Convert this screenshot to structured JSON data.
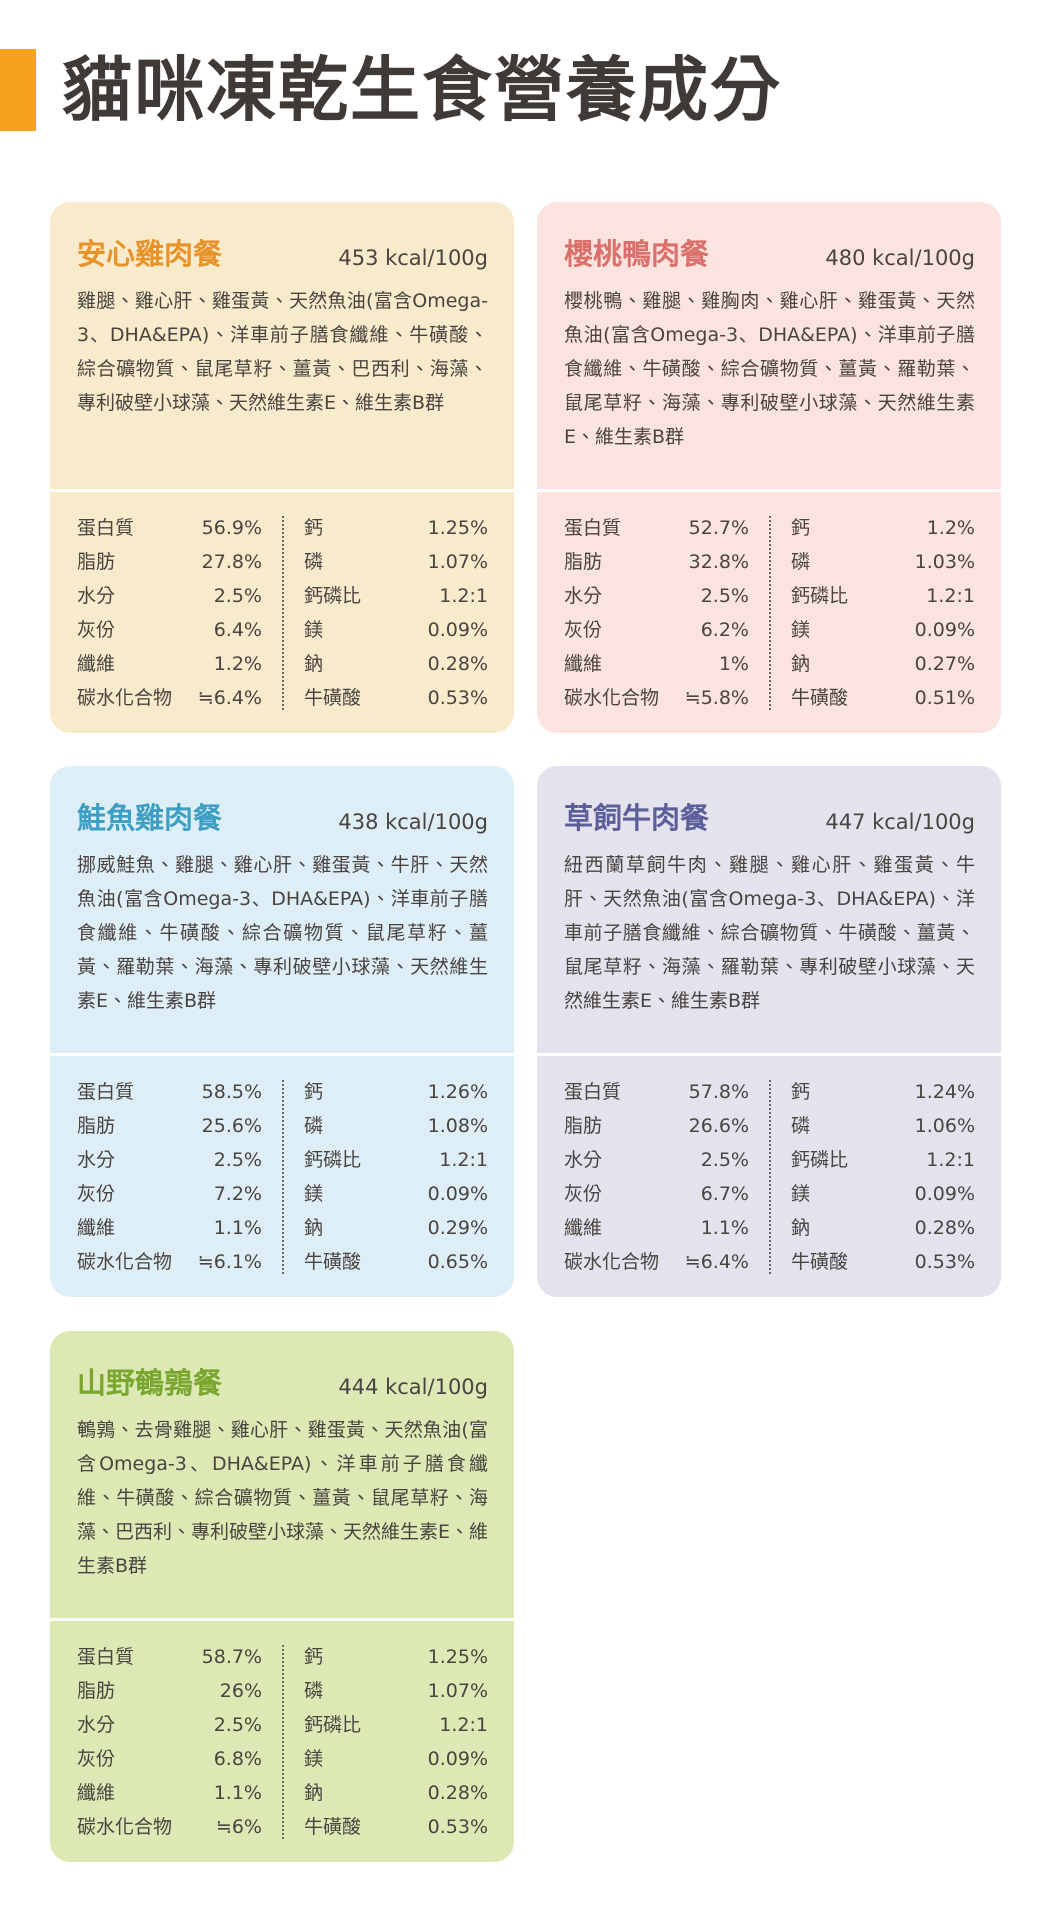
{
  "header": {
    "title": "貓咪凍乾生食營養成分"
  },
  "cards": [
    {
      "name": "安心雞肉餐",
      "kcal": "453 kcal/100g",
      "bg": "#f7ebcb",
      "accent": "#e8932a",
      "ingredients": "雞腿、雞心肝、雞蛋黃、天然魚油(富含Omega-3、DHA&EPA)、洋車前子膳食纖維、牛磺酸、綜合礦物質、鼠尾草籽、薑黃、巴西利、海藻、專利破壁小球藻、天然維生素E、維生素B群",
      "left": [
        [
          "蛋白質",
          "56.9%"
        ],
        [
          "脂肪",
          "27.8%"
        ],
        [
          "水分",
          "2.5%"
        ],
        [
          "灰份",
          "6.4%"
        ],
        [
          "纖維",
          "1.2%"
        ],
        [
          "碳水化合物",
          "≒6.4%"
        ]
      ],
      "right": [
        [
          "鈣",
          "1.25%"
        ],
        [
          "磷",
          "1.07%"
        ],
        [
          "鈣磷比",
          "1.2:1"
        ],
        [
          "鎂",
          "0.09%"
        ],
        [
          "鈉",
          "0.28%"
        ],
        [
          "牛磺酸",
          "0.53%"
        ]
      ]
    },
    {
      "name": "櫻桃鴨肉餐",
      "kcal": "480 kcal/100g",
      "bg": "#fbe3df",
      "accent": "#d9706b",
      "ingredients": "櫻桃鴨、雞腿、雞胸肉、雞心肝、雞蛋黃、天然魚油(富含Omega-3、DHA&EPA)、洋車前子膳食纖維、牛磺酸、綜合礦物質、薑黃、羅勒葉、鼠尾草籽、海藻、專利破壁小球藻、天然維生素E、維生素B群",
      "left": [
        [
          "蛋白質",
          "52.7%"
        ],
        [
          "脂肪",
          "32.8%"
        ],
        [
          "水分",
          "2.5%"
        ],
        [
          "灰份",
          "6.2%"
        ],
        [
          "纖維",
          "1%"
        ],
        [
          "碳水化合物",
          "≒5.8%"
        ]
      ],
      "right": [
        [
          "鈣",
          "1.2%"
        ],
        [
          "磷",
          "1.03%"
        ],
        [
          "鈣磷比",
          "1.2:1"
        ],
        [
          "鎂",
          "0.09%"
        ],
        [
          "鈉",
          "0.27%"
        ],
        [
          "牛磺酸",
          "0.51%"
        ]
      ]
    },
    {
      "name": "鮭魚雞肉餐",
      "kcal": "438 kcal/100g",
      "bg": "#ddeef7",
      "accent": "#3f9fc3",
      "ingredients": "挪威鮭魚、雞腿、雞心肝、雞蛋黃、牛肝、天然魚油(富含Omega-3、DHA&EPA)、洋車前子膳食纖維、牛磺酸、綜合礦物質、鼠尾草籽、薑黃、羅勒葉、海藻、專利破壁小球藻、天然維生素E、維生素B群",
      "left": [
        [
          "蛋白質",
          "58.5%"
        ],
        [
          "脂肪",
          "25.6%"
        ],
        [
          "水分",
          "2.5%"
        ],
        [
          "灰份",
          "7.2%"
        ],
        [
          "纖維",
          "1.1%"
        ],
        [
          "碳水化合物",
          "≒6.1%"
        ]
      ],
      "right": [
        [
          "鈣",
          "1.26%"
        ],
        [
          "磷",
          "1.08%"
        ],
        [
          "鈣磷比",
          "1.2:1"
        ],
        [
          "鎂",
          "0.09%"
        ],
        [
          "鈉",
          "0.29%"
        ],
        [
          "牛磺酸",
          "0.65%"
        ]
      ]
    },
    {
      "name": "草飼牛肉餐",
      "kcal": "447 kcal/100g",
      "bg": "#e3e3ee",
      "accent": "#5d5f9a",
      "ingredients": "紐西蘭草飼牛肉、雞腿、雞心肝、雞蛋黃、牛肝、天然魚油(富含Omega-3、DHA&EPA)、洋車前子膳食纖維、綜合礦物質、牛磺酸、薑黃、鼠尾草籽、海藻、羅勒葉、專利破壁小球藻、天然維生素E、維生素B群",
      "left": [
        [
          "蛋白質",
          "57.8%"
        ],
        [
          "脂肪",
          "26.6%"
        ],
        [
          "水分",
          "2.5%"
        ],
        [
          "灰份",
          "6.7%"
        ],
        [
          "纖維",
          "1.1%"
        ],
        [
          "碳水化合物",
          "≒6.4%"
        ]
      ],
      "right": [
        [
          "鈣",
          "1.24%"
        ],
        [
          "磷",
          "1.06%"
        ],
        [
          "鈣磷比",
          "1.2:1"
        ],
        [
          "鎂",
          "0.09%"
        ],
        [
          "鈉",
          "0.28%"
        ],
        [
          "牛磺酸",
          "0.53%"
        ]
      ]
    },
    {
      "name": "山野鵪鶉餐",
      "kcal": "444 kcal/100g",
      "bg": "#dde9b5",
      "accent": "#7aa52f",
      "ingredients": "鵪鶉、去骨雞腿、雞心肝、雞蛋黃、天然魚油(富含Omega-3、DHA&EPA)、洋車前子膳食纖維、牛磺酸、綜合礦物質、薑黃、鼠尾草籽、海藻、巴西利、專利破壁小球藻、天然維生素E、維生素B群",
      "left": [
        [
          "蛋白質",
          "58.7%"
        ],
        [
          "脂肪",
          "26%"
        ],
        [
          "水分",
          "2.5%"
        ],
        [
          "灰份",
          "6.8%"
        ],
        [
          "纖維",
          "1.1%"
        ],
        [
          "碳水化合物",
          "≒6%"
        ]
      ],
      "right": [
        [
          "鈣",
          "1.25%"
        ],
        [
          "磷",
          "1.07%"
        ],
        [
          "鈣磷比",
          "1.2:1"
        ],
        [
          "鎂",
          "0.09%"
        ],
        [
          "鈉",
          "0.28%"
        ],
        [
          "牛磺酸",
          "0.53%"
        ]
      ]
    }
  ]
}
